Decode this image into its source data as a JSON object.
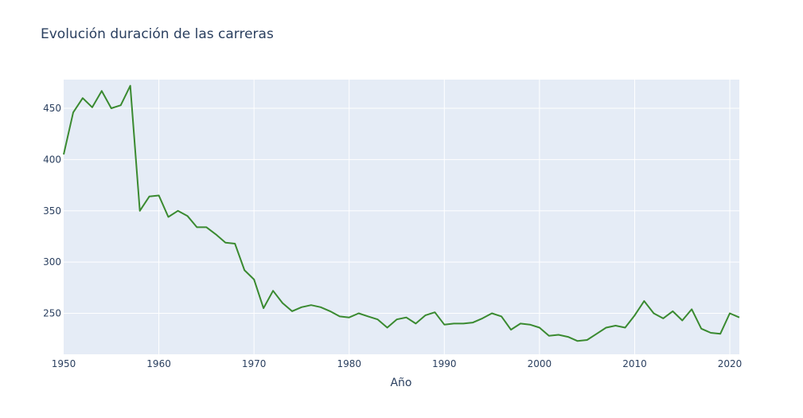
{
  "chart_data": {
    "type": "line",
    "title": "Evolución duración de las carreras",
    "xlabel": "Año",
    "ylabel": "",
    "xlim": [
      1950,
      2021
    ],
    "ylim": [
      210,
      478
    ],
    "x_ticks": [
      1950,
      1960,
      1970,
      1980,
      1990,
      2000,
      2010,
      2020
    ],
    "y_ticks": [
      250,
      300,
      350,
      400,
      450
    ],
    "grid": true,
    "colors": {
      "plot_bg": "#e5ecf6",
      "grid": "#ffffff",
      "line": "#3a8a30",
      "text": "#2a3f5f"
    },
    "series": [
      {
        "x": [
          1950,
          1951,
          1952,
          1953,
          1954,
          1955,
          1956,
          1957,
          1958,
          1959,
          1960,
          1961,
          1962,
          1963,
          1964,
          1965,
          1966,
          1967,
          1968,
          1969,
          1970,
          1971,
          1972,
          1973,
          1974,
          1975,
          1976,
          1977,
          1978,
          1979,
          1980,
          1981,
          1982,
          1983,
          1984,
          1985,
          1986,
          1987,
          1988,
          1989,
          1990,
          1991,
          1992,
          1993,
          1994,
          1995,
          1996,
          1997,
          1998,
          1999,
          2000,
          2001,
          2002,
          2003,
          2004,
          2005,
          2006,
          2007,
          2008,
          2009,
          2010,
          2011,
          2012,
          2013,
          2014,
          2015,
          2016,
          2017,
          2018,
          2019,
          2020,
          2021
        ],
        "values": [
          405,
          446,
          460,
          451,
          467,
          450,
          453,
          472,
          350,
          364,
          365,
          344,
          350,
          345,
          334,
          334,
          327,
          319,
          318,
          292,
          283,
          255,
          272,
          260,
          252,
          256,
          258,
          256,
          252,
          247,
          246,
          250,
          247,
          244,
          236,
          244,
          246,
          240,
          248,
          251,
          239,
          240,
          240,
          241,
          245,
          250,
          247,
          234,
          240,
          239,
          236,
          228,
          229,
          227,
          223,
          224,
          230,
          236,
          238,
          236,
          248,
          262,
          250,
          245,
          252,
          243,
          254,
          235,
          231,
          230,
          250,
          246
        ]
      }
    ]
  }
}
